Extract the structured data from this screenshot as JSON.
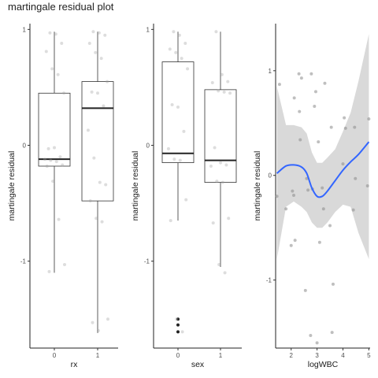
{
  "figure": {
    "title": "martingale residual plot"
  },
  "chart_data": [
    {
      "type": "box",
      "xlabel": "rx",
      "ylabel": "martingale residual",
      "categories": [
        "0",
        "1"
      ],
      "ylim": [
        -1.75,
        1.05
      ],
      "yticks": [
        -1,
        0,
        1
      ],
      "boxes": [
        {
          "category": "0",
          "min": -1.1,
          "q1": -0.18,
          "median": -0.12,
          "q3": 0.45,
          "max": 0.98
        },
        {
          "category": "1",
          "min": -1.62,
          "q1": -0.48,
          "median": 0.32,
          "q3": 0.55,
          "max": 0.98
        }
      ],
      "points": [
        {
          "group": "0",
          "y": 0.97
        },
        {
          "group": "0",
          "y": 0.96
        },
        {
          "group": "0",
          "y": 0.88
        },
        {
          "group": "0",
          "y": 0.81
        },
        {
          "group": "0",
          "y": 0.66
        },
        {
          "group": "0",
          "y": 0.61
        },
        {
          "group": "0",
          "y": 0.45
        },
        {
          "group": "0",
          "y": -0.03
        },
        {
          "group": "0",
          "y": -0.02
        },
        {
          "group": "0",
          "y": -0.1
        },
        {
          "group": "0",
          "y": -0.12
        },
        {
          "group": "0",
          "y": -0.13
        },
        {
          "group": "0",
          "y": -0.14
        },
        {
          "group": "0",
          "y": -0.17
        },
        {
          "group": "0",
          "y": -0.18
        },
        {
          "group": "0",
          "y": -0.31
        },
        {
          "group": "0",
          "y": -0.64
        },
        {
          "group": "0",
          "y": -1.03
        },
        {
          "group": "0",
          "y": -1.09
        },
        {
          "group": "1",
          "y": 0.98
        },
        {
          "group": "1",
          "y": 0.97
        },
        {
          "group": "1",
          "y": 0.95
        },
        {
          "group": "1",
          "y": 0.88
        },
        {
          "group": "1",
          "y": 0.8
        },
        {
          "group": "1",
          "y": 0.75
        },
        {
          "group": "1",
          "y": 0.55
        },
        {
          "group": "1",
          "y": 0.46
        },
        {
          "group": "1",
          "y": 0.45
        },
        {
          "group": "1",
          "y": 0.34
        },
        {
          "group": "1",
          "y": 0.13
        },
        {
          "group": "1",
          "y": -0.11
        },
        {
          "group": "1",
          "y": -0.32
        },
        {
          "group": "1",
          "y": -0.34
        },
        {
          "group": "1",
          "y": -0.48
        },
        {
          "group": "1",
          "y": -0.63
        },
        {
          "group": "1",
          "y": -0.66
        },
        {
          "group": "1",
          "y": -1.5
        },
        {
          "group": "1",
          "y": -1.53
        },
        {
          "group": "1",
          "y": -1.6
        }
      ]
    },
    {
      "type": "box",
      "xlabel": "sex",
      "ylabel": "martingale residual",
      "categories": [
        "0",
        "1"
      ],
      "ylim": [
        -1.75,
        1.05
      ],
      "yticks": [
        -1,
        0,
        1
      ],
      "boxes": [
        {
          "category": "0",
          "min": -0.65,
          "q1": -0.15,
          "median": -0.07,
          "q3": 0.72,
          "max": 0.98,
          "outliers": [
            -1.5,
            -1.55,
            -1.61
          ]
        },
        {
          "category": "1",
          "min": -1.05,
          "q1": -0.32,
          "median": -0.13,
          "q3": 0.48,
          "max": 0.98
        }
      ],
      "points": [
        {
          "group": "0",
          "y": 0.98
        },
        {
          "group": "0",
          "y": 0.95
        },
        {
          "group": "0",
          "y": 0.88
        },
        {
          "group": "0",
          "y": 0.83
        },
        {
          "group": "0",
          "y": 0.8
        },
        {
          "group": "0",
          "y": 0.75
        },
        {
          "group": "0",
          "y": 0.66
        },
        {
          "group": "0",
          "y": 0.35
        },
        {
          "group": "0",
          "y": 0.33
        },
        {
          "group": "0",
          "y": 0.12
        },
        {
          "group": "0",
          "y": -0.03
        },
        {
          "group": "0",
          "y": -0.12
        },
        {
          "group": "0",
          "y": -0.13
        },
        {
          "group": "0",
          "y": -0.47
        },
        {
          "group": "0",
          "y": -0.65
        },
        {
          "group": "0",
          "y": -1.5
        },
        {
          "group": "0",
          "y": -1.61
        },
        {
          "group": "1",
          "y": 0.98
        },
        {
          "group": "1",
          "y": 0.61
        },
        {
          "group": "1",
          "y": 0.55
        },
        {
          "group": "1",
          "y": 0.54
        },
        {
          "group": "1",
          "y": 0.47
        },
        {
          "group": "1",
          "y": 0.46
        },
        {
          "group": "1",
          "y": 0.45
        },
        {
          "group": "1",
          "y": -0.02
        },
        {
          "group": "1",
          "y": -0.15
        },
        {
          "group": "1",
          "y": -0.17
        },
        {
          "group": "1",
          "y": -0.18
        },
        {
          "group": "1",
          "y": -0.31
        },
        {
          "group": "1",
          "y": -0.32
        },
        {
          "group": "1",
          "y": -0.63
        },
        {
          "group": "1",
          "y": -0.67
        },
        {
          "group": "1",
          "y": -1.03
        },
        {
          "group": "1",
          "y": -1.1
        }
      ]
    },
    {
      "type": "scatter",
      "xlabel": "logWBC",
      "ylabel": "martingale residual",
      "xlim": [
        1.4,
        5.05
      ],
      "ylim": [
        -1.65,
        1.45
      ],
      "xticks": [
        2,
        3,
        4,
        5
      ],
      "yticks": [
        -1,
        0,
        1
      ],
      "points": [
        {
          "x": 1.45,
          "y": -0.2
        },
        {
          "x": 1.55,
          "y": 0.87
        },
        {
          "x": 1.8,
          "y": -0.32
        },
        {
          "x": 2.0,
          "y": -0.67
        },
        {
          "x": 2.05,
          "y": -0.15
        },
        {
          "x": 2.1,
          "y": -0.19
        },
        {
          "x": 2.12,
          "y": 0.74
        },
        {
          "x": 2.15,
          "y": -0.62
        },
        {
          "x": 2.3,
          "y": 0.97
        },
        {
          "x": 2.32,
          "y": 0.61
        },
        {
          "x": 2.35,
          "y": 0.34
        },
        {
          "x": 2.4,
          "y": 0.93
        },
        {
          "x": 2.55,
          "y": -1.1
        },
        {
          "x": 2.6,
          "y": -0.03
        },
        {
          "x": 2.65,
          "y": -0.14
        },
        {
          "x": 2.75,
          "y": -1.53
        },
        {
          "x": 2.78,
          "y": 0.97
        },
        {
          "x": 2.82,
          "y": -0.13
        },
        {
          "x": 2.9,
          "y": 0.66
        },
        {
          "x": 2.95,
          "y": 0.8
        },
        {
          "x": 3.0,
          "y": -1.6
        },
        {
          "x": 3.05,
          "y": 0.32
        },
        {
          "x": 3.1,
          "y": -0.64
        },
        {
          "x": 3.2,
          "y": -0.12
        },
        {
          "x": 3.25,
          "y": -0.32
        },
        {
          "x": 3.3,
          "y": 0.88
        },
        {
          "x": 3.5,
          "y": -0.48
        },
        {
          "x": 3.55,
          "y": 0.46
        },
        {
          "x": 3.58,
          "y": -1.5
        },
        {
          "x": 3.62,
          "y": -1.04
        },
        {
          "x": 4.0,
          "y": 0.11
        },
        {
          "x": 4.05,
          "y": 0.55
        },
        {
          "x": 4.1,
          "y": 0.45
        },
        {
          "x": 4.4,
          "y": -0.33
        },
        {
          "x": 4.45,
          "y": 0.46
        },
        {
          "x": 4.48,
          "y": -0.03
        },
        {
          "x": 4.95,
          "y": -0.1
        },
        {
          "x": 5.0,
          "y": 0.54
        }
      ],
      "smooth": {
        "x": [
          1.45,
          1.8,
          2.1,
          2.4,
          2.6,
          2.8,
          3.0,
          3.2,
          3.4,
          3.7,
          4.0,
          4.3,
          4.6,
          5.0
        ],
        "y": [
          0.02,
          0.09,
          0.1,
          0.08,
          0.02,
          -0.12,
          -0.2,
          -0.2,
          -0.15,
          -0.05,
          0.05,
          0.13,
          0.2,
          0.32
        ],
        "lower": [
          -0.8,
          -0.3,
          -0.25,
          -0.3,
          -0.35,
          -0.45,
          -0.5,
          -0.5,
          -0.45,
          -0.35,
          -0.28,
          -0.3,
          -0.55,
          -0.8
        ],
        "upper": [
          0.85,
          0.48,
          0.48,
          0.46,
          0.4,
          0.22,
          0.12,
          0.12,
          0.17,
          0.25,
          0.42,
          0.6,
          0.9,
          1.35
        ],
        "line_color": "#3366ff",
        "band_color": "#d9d9d9"
      }
    }
  ]
}
